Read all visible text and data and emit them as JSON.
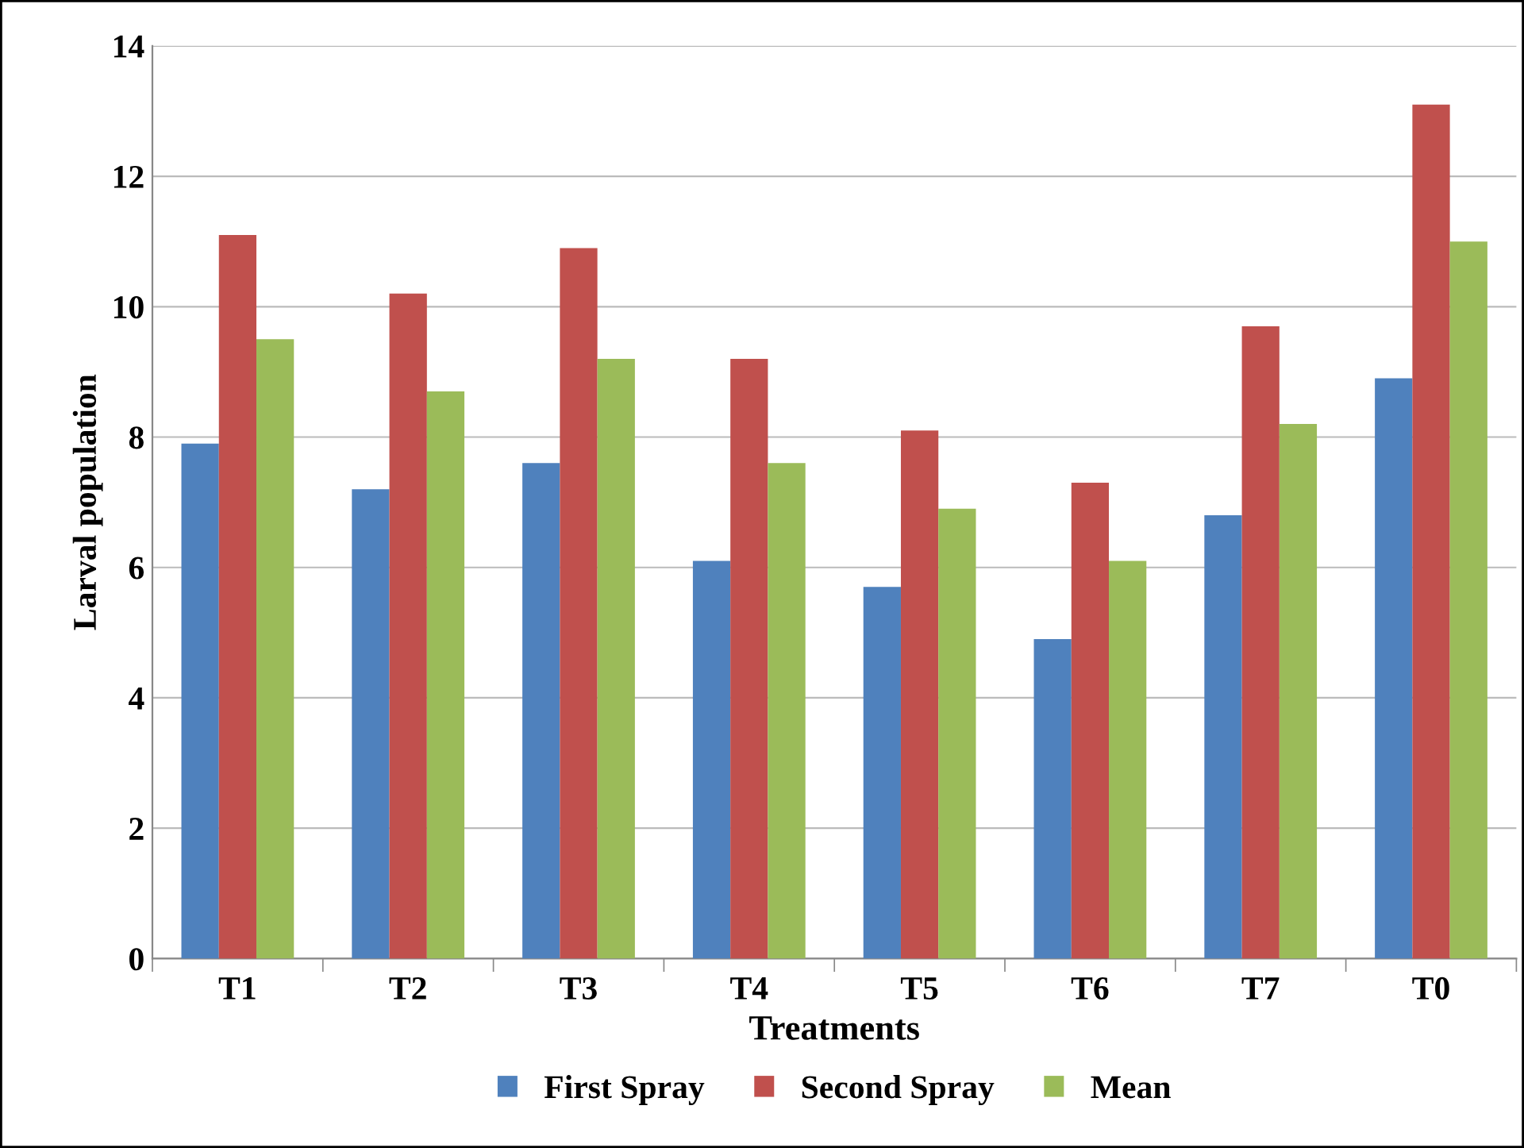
{
  "chart_data": {
    "type": "bar",
    "xlabel": "Treatments",
    "ylabel": "Larval population",
    "categories": [
      "T1",
      "T2",
      "T3",
      "T4",
      "T5",
      "T6",
      "T7",
      "T0"
    ],
    "series": [
      {
        "name": "First Spray",
        "color": "#4f81bd",
        "values": [
          7.9,
          7.2,
          7.6,
          6.1,
          5.7,
          4.9,
          6.8,
          8.9
        ]
      },
      {
        "name": "Second Spray",
        "color": "#c0504d",
        "values": [
          11.1,
          10.2,
          10.9,
          9.2,
          8.1,
          7.3,
          9.7,
          13.1
        ]
      },
      {
        "name": "Mean",
        "color": "#9bbb59",
        "values": [
          9.5,
          8.7,
          9.2,
          7.6,
          6.9,
          6.1,
          8.2,
          11.0
        ]
      }
    ],
    "ylim": [
      0,
      14
    ],
    "yticks": [
      0,
      2,
      4,
      6,
      8,
      10,
      12,
      14
    ],
    "grid": "y",
    "legend": "bottom"
  }
}
